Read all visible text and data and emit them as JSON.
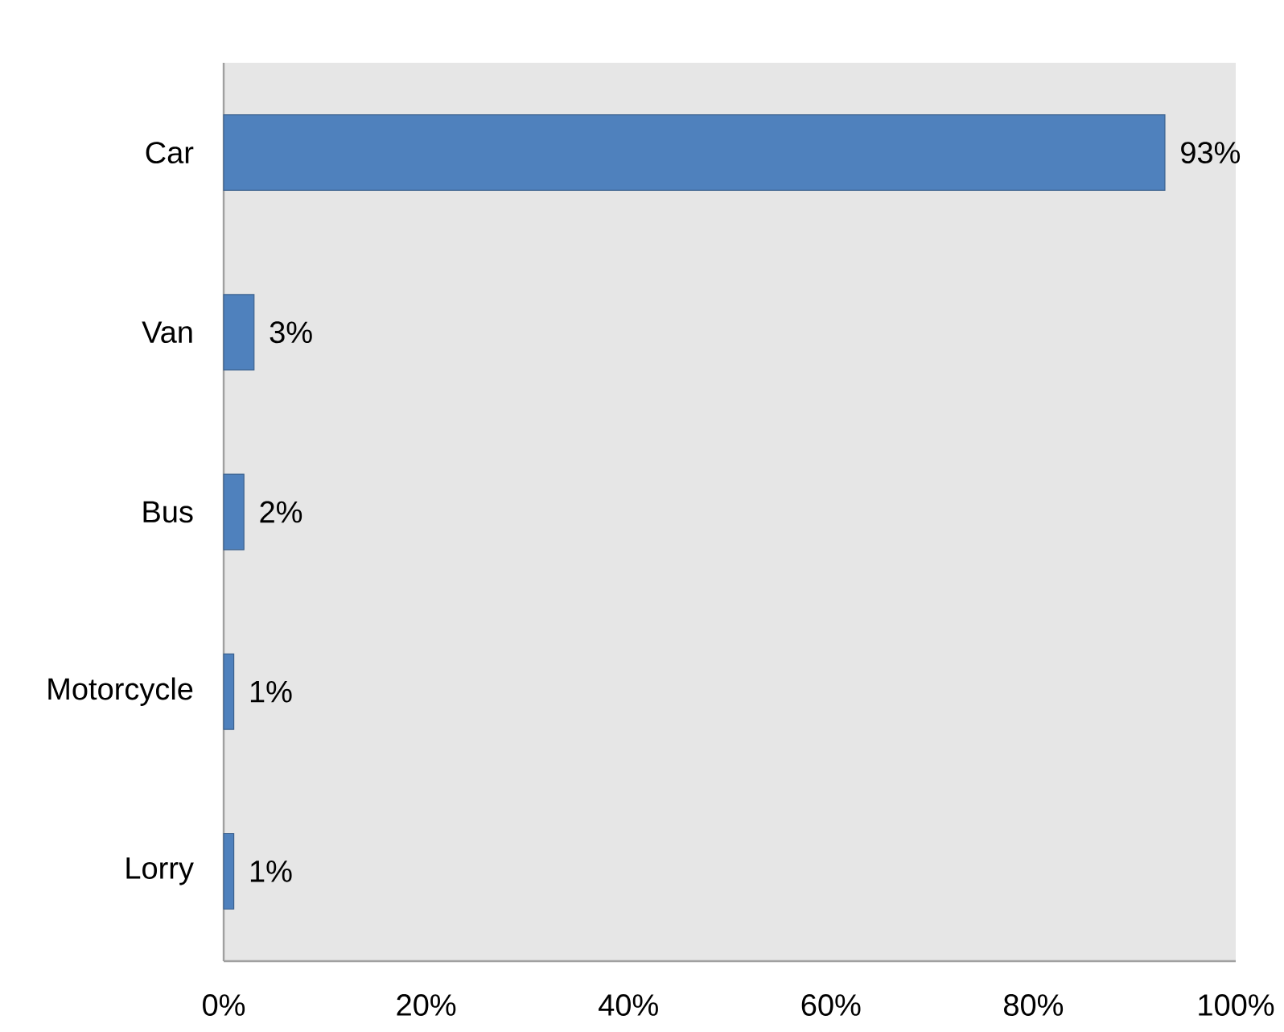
{
  "chart_data": {
    "type": "bar",
    "orientation": "horizontal",
    "categories": [
      "Car",
      "Van",
      "Bus",
      "Motorcycle",
      "Lorry"
    ],
    "values": [
      93,
      3,
      2,
      1,
      1
    ],
    "color": "#4f81bd",
    "value_labels": [
      "93%",
      "3%",
      "2%",
      "1%",
      "1%"
    ],
    "xlim": [
      0,
      100
    ],
    "xticks": [
      {
        "value": 0,
        "label": "0%"
      },
      {
        "value": 20,
        "label": "20%"
      },
      {
        "value": 40,
        "label": "40%"
      },
      {
        "value": 60,
        "label": "60%"
      },
      {
        "value": 80,
        "label": "80%"
      },
      {
        "value": 100,
        "label": "100%"
      }
    ]
  }
}
